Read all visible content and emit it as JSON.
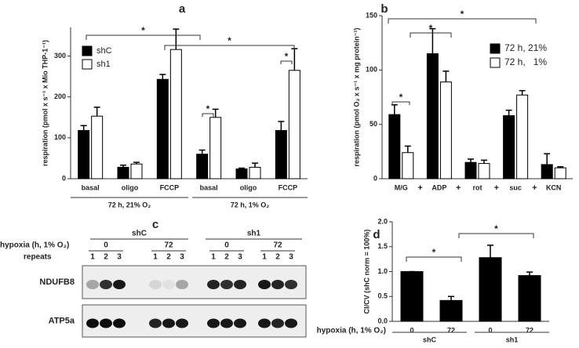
{
  "chart_data": [
    {
      "type": "bar",
      "panel": "a",
      "ylabel": "respiration (pmol x s⁻¹ x Mio THP-1⁻¹)",
      "categories": [
        "basal",
        "oligo",
        "FCCP",
        "basal",
        "oligo",
        "FCCP"
      ],
      "group_labels": [
        "72 h, 21% O₂",
        "72 h, 1% O₂"
      ],
      "series": [
        {
          "name": "shC",
          "color": "#000000",
          "values": [
            118,
            28,
            243,
            60,
            24,
            118
          ],
          "errors": [
            12,
            5,
            12,
            10,
            2,
            22
          ]
        },
        {
          "name": "sh1",
          "color": "#ffffff",
          "values": [
            153,
            36,
            316,
            150,
            28,
            265
          ],
          "errors": [
            22,
            4,
            50,
            20,
            10,
            53
          ]
        }
      ],
      "ylim": [
        0,
        370
      ],
      "yticks": [
        0,
        100,
        200,
        300
      ],
      "annotations": [
        "*",
        "*",
        "*",
        "*"
      ]
    },
    {
      "type": "bar",
      "panel": "b",
      "ylabel": "respiration (pmol O₂ x s⁻¹ x mg protein⁻¹)",
      "categories": [
        "M/G",
        "ADP",
        "rot",
        "suc",
        "KCN"
      ],
      "separators": [
        "+",
        "+",
        "+",
        "+"
      ],
      "series": [
        {
          "name": "72 h, 21%",
          "color": "#000000",
          "values": [
            59,
            115,
            15,
            58,
            13
          ],
          "errors": [
            9,
            23,
            3,
            5,
            10
          ]
        },
        {
          "name": "72 h,   1%",
          "color": "#ffffff",
          "values": [
            24,
            89,
            14,
            77,
            10
          ],
          "errors": [
            6,
            10,
            3,
            4,
            1
          ]
        }
      ],
      "ylim": [
        0,
        150
      ],
      "yticks": [
        0,
        50,
        100,
        150
      ],
      "annotations": [
        "*",
        "*",
        "*"
      ]
    },
    {
      "type": "bar",
      "panel": "d",
      "ylabel": "CI/CV (shC norm = 100%)",
      "xlabel": "hypoxia (h, 1% O₂)",
      "categories": [
        "0",
        "72",
        "0",
        "72"
      ],
      "group_labels": [
        "shC",
        "sh1"
      ],
      "series": [
        {
          "color": "#000000",
          "values": [
            1.0,
            0.42,
            1.28,
            0.92
          ],
          "errors": [
            0,
            0.08,
            0.25,
            0.07
          ]
        }
      ],
      "ylim": [
        0,
        2
      ],
      "yticks": [
        {
          "value": 0,
          "label": "0.0"
        },
        {
          "value": 0.5,
          "label": "0.5"
        },
        {
          "value": 1,
          "label": "1.0"
        },
        {
          "value": 1.5,
          "label": "1.5"
        },
        {
          "value": 2,
          "label": "2.0"
        }
      ],
      "annotations": [
        "*",
        "*"
      ]
    }
  ],
  "blot": {
    "panel": "c",
    "groups": [
      "shC",
      "sh1"
    ],
    "hypoxia_label": "hypoxia (h, 1% O₂)",
    "times": [
      "0",
      "72",
      "0",
      "72"
    ],
    "repeats_label": "repeats",
    "repeats": [
      "1",
      "2",
      "3",
      "1",
      "2",
      "3",
      "1",
      "2",
      "3",
      "1",
      "2",
      "3"
    ],
    "rows": [
      "NDUFB8",
      "ATP5a"
    ]
  }
}
